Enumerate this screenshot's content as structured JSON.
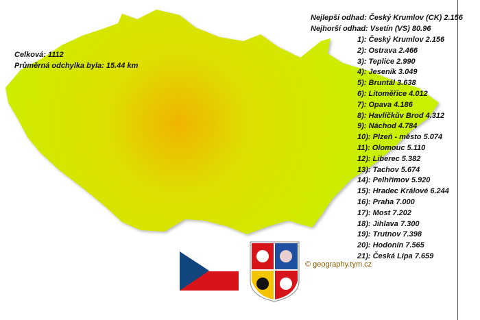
{
  "summary": {
    "total": "Celková: 1112",
    "avg_deviation": "Průměrná odchylka byla: 15.44 km"
  },
  "best": "Nejlepší odhad: Český Krumlov (CK) 2.156",
  "worst": "Nejhorší odhad: Vsetín (VS) 80.96",
  "ranking": [
    "1): Český Krumlov 2.156",
    "2): Ostrava 2.466",
    "3): Teplice 2.990",
    "4): Jeseník 3.049",
    "5): Bruntál 3.638",
    "6): Litoměřice 4.012",
    "7): Opava 4.186",
    "8): Havlíčkův Brod 4.312",
    "9): Náchod 4.784",
    "10): Plzeň - město 5.074",
    "11): Olomouc 5.110",
    "12): Liberec 5.382",
    "13): Tachov 5.674",
    "14): Pelhřimov 5.920",
    "15): Hradec Králové 6.244",
    "16): Praha 7.000",
    "17): Most 7.202",
    "18): Jihlava 7.300",
    "19): Trutnov 7.398",
    "20): Hodonín 7.565",
    "21): Česká Lípa 7.659"
  ],
  "copyright": "© geography.tym.cz",
  "colors": {
    "map_center": "#f0b400",
    "map_edge": "#c8f000",
    "flag_blue": "#11457e",
    "flag_red": "#d7141a"
  }
}
